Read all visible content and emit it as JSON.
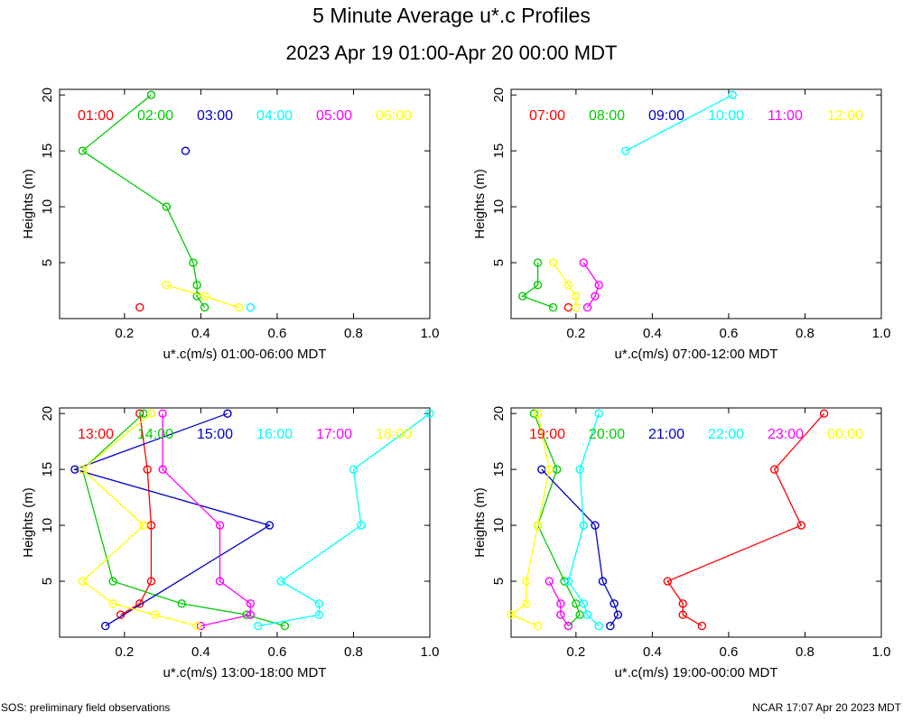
{
  "title": "5 Minute Average u*.c Profiles",
  "subtitle": "2023 Apr 19 01:00-Apr 20 00:00 MDT",
  "footer_left": "SOS: preliminary field observations",
  "footer_right": "NCAR 17:07 Apr 20 2023 MDT",
  "colors": [
    "#ff0000",
    "#00cc00",
    "#0000cc",
    "#00ffff",
    "#ff00ff",
    "#ffff00"
  ],
  "chart_data": [
    {
      "type": "line",
      "xlabel": "u*.c(m/s) 01:00-06:00 MDT",
      "ylabel": "Heights (m)",
      "xlim": [
        0.03,
        1.0
      ],
      "ylim": [
        0,
        20.5
      ],
      "xticks": [
        0.2,
        0.4,
        0.6,
        0.8,
        1.0
      ],
      "yticks": [
        5,
        10,
        15,
        20
      ],
      "xtick_labels": [
        "0.2",
        "0.4",
        "0.6",
        "0.8",
        "1.0"
      ],
      "ytick_labels": [
        "5",
        "10",
        "15",
        "20"
      ],
      "series": [
        {
          "name": "01:00",
          "points": [
            [
              0.24,
              1
            ]
          ]
        },
        {
          "name": "02:00",
          "points": [
            [
              0.41,
              1
            ],
            [
              0.39,
              2
            ],
            [
              0.39,
              3
            ],
            [
              0.38,
              5
            ],
            [
              0.31,
              10
            ],
            [
              0.09,
              15
            ],
            [
              0.27,
              20
            ]
          ]
        },
        {
          "name": "03:00",
          "points": [
            [
              0.36,
              15
            ]
          ]
        },
        {
          "name": "04:00",
          "points": [
            [
              0.53,
              1
            ]
          ]
        },
        {
          "name": "05:00",
          "points": []
        },
        {
          "name": "06:00",
          "points": [
            [
              0.5,
              1
            ],
            [
              0.41,
              2
            ],
            [
              0.31,
              3
            ]
          ]
        }
      ]
    },
    {
      "type": "line",
      "xlabel": "u*.c(m/s) 07:00-12:00 MDT",
      "ylabel": "Heights (m)",
      "xlim": [
        0.03,
        1.0
      ],
      "ylim": [
        0,
        20.5
      ],
      "xticks": [
        0.2,
        0.4,
        0.6,
        0.8,
        1.0
      ],
      "yticks": [
        5,
        10,
        15,
        20
      ],
      "xtick_labels": [
        "0.2",
        "0.4",
        "0.6",
        "0.8",
        "1.0"
      ],
      "ytick_labels": [
        "5",
        "10",
        "15",
        "20"
      ],
      "series": [
        {
          "name": "07:00",
          "points": [
            [
              0.18,
              1
            ]
          ]
        },
        {
          "name": "08:00",
          "points": [
            [
              0.14,
              1
            ],
            [
              0.06,
              2
            ],
            [
              0.1,
              3
            ],
            [
              0.1,
              5
            ]
          ]
        },
        {
          "name": "09:00",
          "points": []
        },
        {
          "name": "10:00",
          "points": [
            [
              0.33,
              15
            ],
            [
              0.61,
              20
            ]
          ]
        },
        {
          "name": "11:00",
          "points": [
            [
              0.23,
              1
            ],
            [
              0.25,
              2
            ],
            [
              0.26,
              3
            ],
            [
              0.22,
              5
            ]
          ]
        },
        {
          "name": "12:00",
          "points": [
            [
              0.2,
              1
            ],
            [
              0.2,
              2
            ],
            [
              0.18,
              3
            ],
            [
              0.14,
              5
            ]
          ]
        }
      ]
    },
    {
      "type": "line",
      "xlabel": "u*.c(m/s) 13:00-18:00 MDT",
      "ylabel": "Heights (m)",
      "xlim": [
        0.03,
        1.0
      ],
      "ylim": [
        0,
        20.5
      ],
      "xticks": [
        0.2,
        0.4,
        0.6,
        0.8,
        1.0
      ],
      "yticks": [
        5,
        10,
        15,
        20
      ],
      "xtick_labels": [
        "0.2",
        "0.4",
        "0.6",
        "0.8",
        "1.0"
      ],
      "ytick_labels": [
        "5",
        "10",
        "15",
        "20"
      ],
      "series": [
        {
          "name": "13:00",
          "points": [
            [
              0.19,
              2
            ],
            [
              0.24,
              3
            ],
            [
              0.27,
              5
            ],
            [
              0.27,
              10
            ],
            [
              0.26,
              15
            ],
            [
              0.24,
              20
            ]
          ]
        },
        {
          "name": "14:00",
          "points": [
            [
              0.62,
              1
            ],
            [
              0.52,
              2
            ],
            [
              0.35,
              3
            ],
            [
              0.17,
              5
            ],
            [
              0.09,
              15
            ],
            [
              0.25,
              20
            ]
          ]
        },
        {
          "name": "15:00",
          "points": [
            [
              0.15,
              1
            ],
            [
              0.58,
              10
            ],
            [
              0.07,
              15
            ],
            [
              0.47,
              20
            ]
          ]
        },
        {
          "name": "16:00",
          "points": [
            [
              0.55,
              1
            ],
            [
              0.71,
              2
            ],
            [
              0.71,
              3
            ],
            [
              0.61,
              5
            ],
            [
              0.82,
              10
            ],
            [
              0.8,
              15
            ],
            [
              1.0,
              20
            ]
          ]
        },
        {
          "name": "17:00",
          "points": [
            [
              0.4,
              1
            ],
            [
              0.53,
              2
            ],
            [
              0.53,
              3
            ],
            [
              0.45,
              5
            ],
            [
              0.45,
              10
            ],
            [
              0.3,
              15
            ],
            [
              0.3,
              20
            ]
          ]
        },
        {
          "name": "18:00",
          "points": [
            [
              0.39,
              1
            ],
            [
              0.28,
              2
            ],
            [
              0.17,
              3
            ],
            [
              0.09,
              5
            ],
            [
              0.25,
              10
            ],
            [
              0.09,
              15
            ],
            [
              0.27,
              20
            ]
          ]
        }
      ]
    },
    {
      "type": "line",
      "xlabel": "u*.c(m/s) 19:00-00:00 MDT",
      "ylabel": "Heights (m)",
      "xlim": [
        0.03,
        1.0
      ],
      "ylim": [
        0,
        20.5
      ],
      "xticks": [
        0.2,
        0.4,
        0.6,
        0.8,
        1.0
      ],
      "yticks": [
        5,
        10,
        15,
        20
      ],
      "xtick_labels": [
        "0.2",
        "0.4",
        "0.6",
        "0.8",
        "1.0"
      ],
      "ytick_labels": [
        "5",
        "10",
        "15",
        "20"
      ],
      "series": [
        {
          "name": "19:00",
          "points": [
            [
              0.53,
              1
            ],
            [
              0.48,
              2
            ],
            [
              0.48,
              3
            ],
            [
              0.44,
              5
            ],
            [
              0.79,
              10
            ],
            [
              0.72,
              15
            ],
            [
              0.85,
              20
            ]
          ]
        },
        {
          "name": "20:00",
          "points": [
            [
              0.18,
              1
            ],
            [
              0.21,
              2
            ],
            [
              0.2,
              3
            ],
            [
              0.17,
              5
            ],
            [
              0.1,
              10
            ],
            [
              0.15,
              15
            ],
            [
              0.09,
              20
            ]
          ]
        },
        {
          "name": "21:00",
          "points": [
            [
              0.29,
              1
            ],
            [
              0.31,
              2
            ],
            [
              0.3,
              3
            ],
            [
              0.27,
              5
            ],
            [
              0.25,
              10
            ],
            [
              0.11,
              15
            ]
          ]
        },
        {
          "name": "22:00",
          "points": [
            [
              0.26,
              1
            ],
            [
              0.23,
              2
            ],
            [
              0.22,
              3
            ],
            [
              0.18,
              5
            ],
            [
              0.22,
              10
            ],
            [
              0.21,
              15
            ],
            [
              0.26,
              20
            ]
          ]
        },
        {
          "name": "23:00",
          "points": [
            [
              0.18,
              1
            ],
            [
              0.16,
              2
            ],
            [
              0.16,
              3
            ],
            [
              0.13,
              5
            ]
          ]
        },
        {
          "name": "00:00",
          "points": [
            [
              0.1,
              1
            ],
            [
              0.03,
              2
            ],
            [
              0.07,
              3
            ],
            [
              0.07,
              5
            ],
            [
              0.1,
              10
            ],
            [
              0.13,
              15
            ],
            [
              0.1,
              20
            ]
          ]
        }
      ]
    }
  ]
}
